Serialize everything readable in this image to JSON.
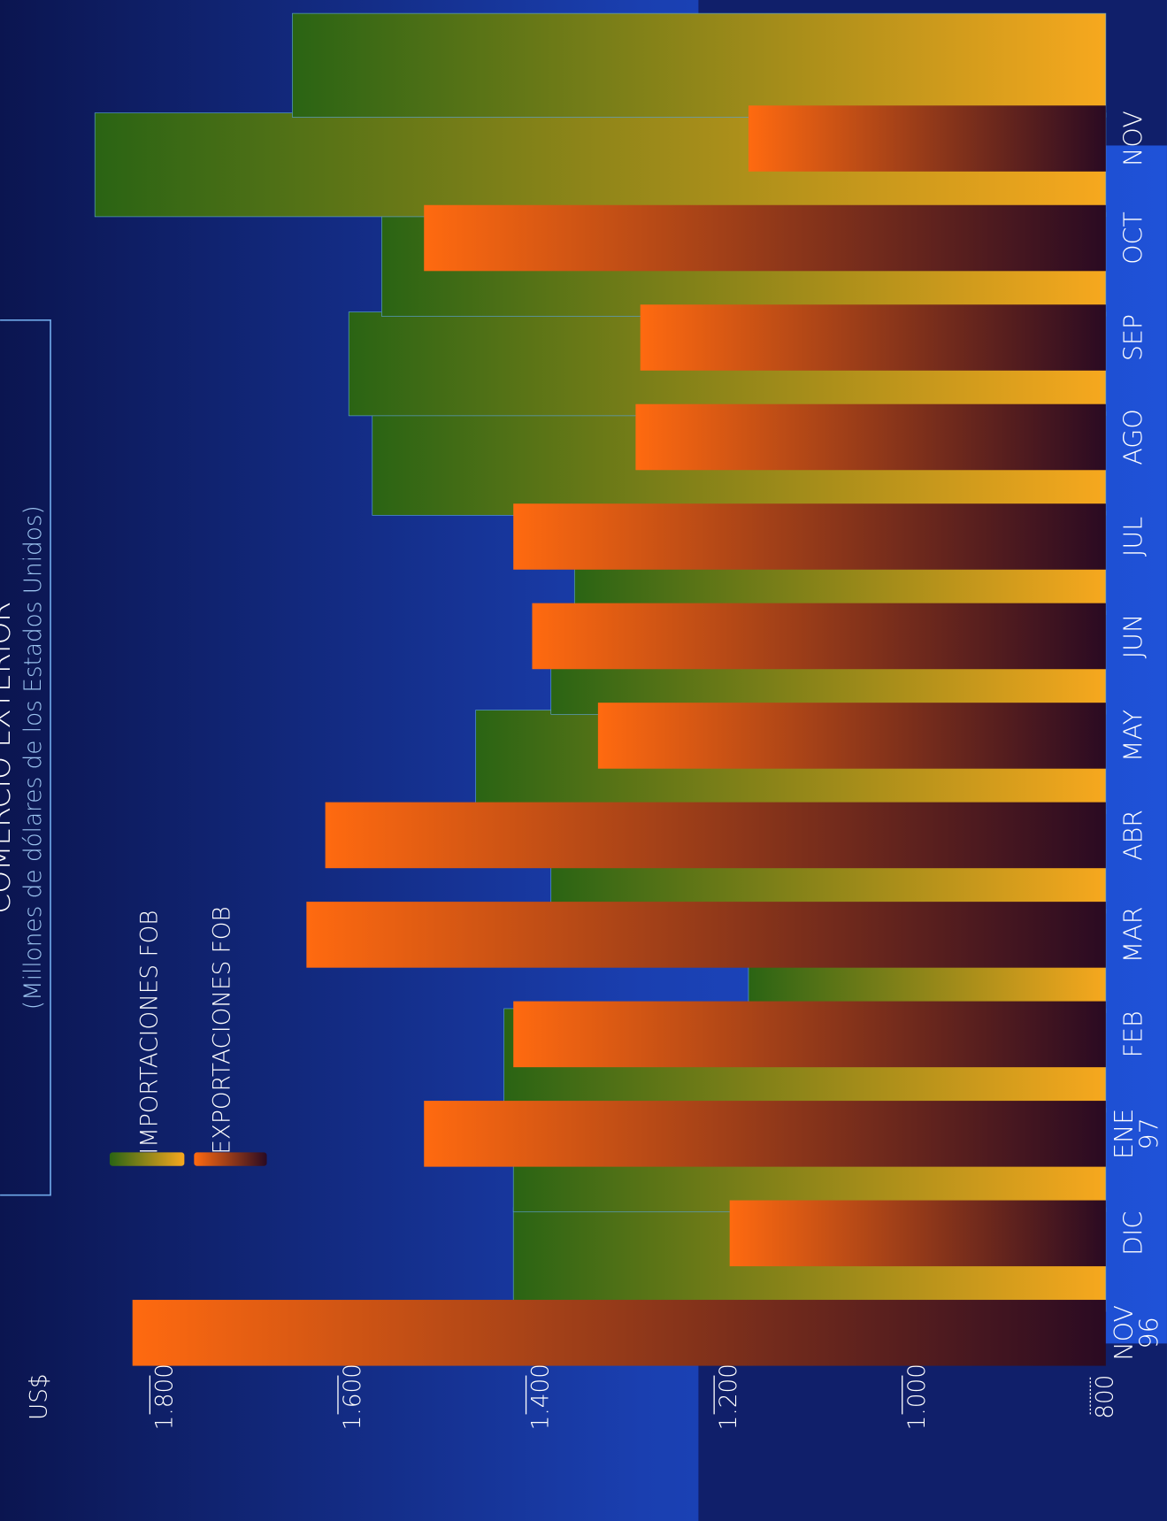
{
  "chart_data": {
    "type": "bar",
    "title": "COMERCIO EXTERIOR",
    "subtitle": "(Millones de dólares de los Estados Unidos)",
    "y_label": "US$",
    "categories": [
      "NOV 96",
      "DIC",
      "ENE 97",
      "FEB",
      "MAR",
      "ABR",
      "MAY",
      "JUN",
      "JUL",
      "AGO",
      "SEP",
      "OCT",
      "NOV"
    ],
    "series": [
      {
        "name": "IMPORTACIONES FOB",
        "color": "#2a6414",
        "values": [
          1430,
          1430,
          1440,
          1180,
          1390,
          1470,
          1390,
          1365,
          1580,
          1605,
          1570,
          1875,
          1665
        ]
      },
      {
        "name": "EXPORTACIONES FOB",
        "color": "#ff6a10",
        "values": [
          1835,
          1200,
          1525,
          1430,
          1650,
          1630,
          1340,
          1410,
          1430,
          1300,
          1295,
          1525,
          1180
        ]
      }
    ],
    "ylim": [
      800,
      1950
    ],
    "yticks": [
      800,
      {
        "value": 1000,
        "label": "1.000"
      },
      {
        "value": 1200,
        "label": "1.200"
      },
      {
        "value": 1400,
        "label": "1.400"
      },
      {
        "value": 1600,
        "label": "1.600"
      },
      {
        "value": 1800,
        "label": "1.800"
      }
    ]
  }
}
